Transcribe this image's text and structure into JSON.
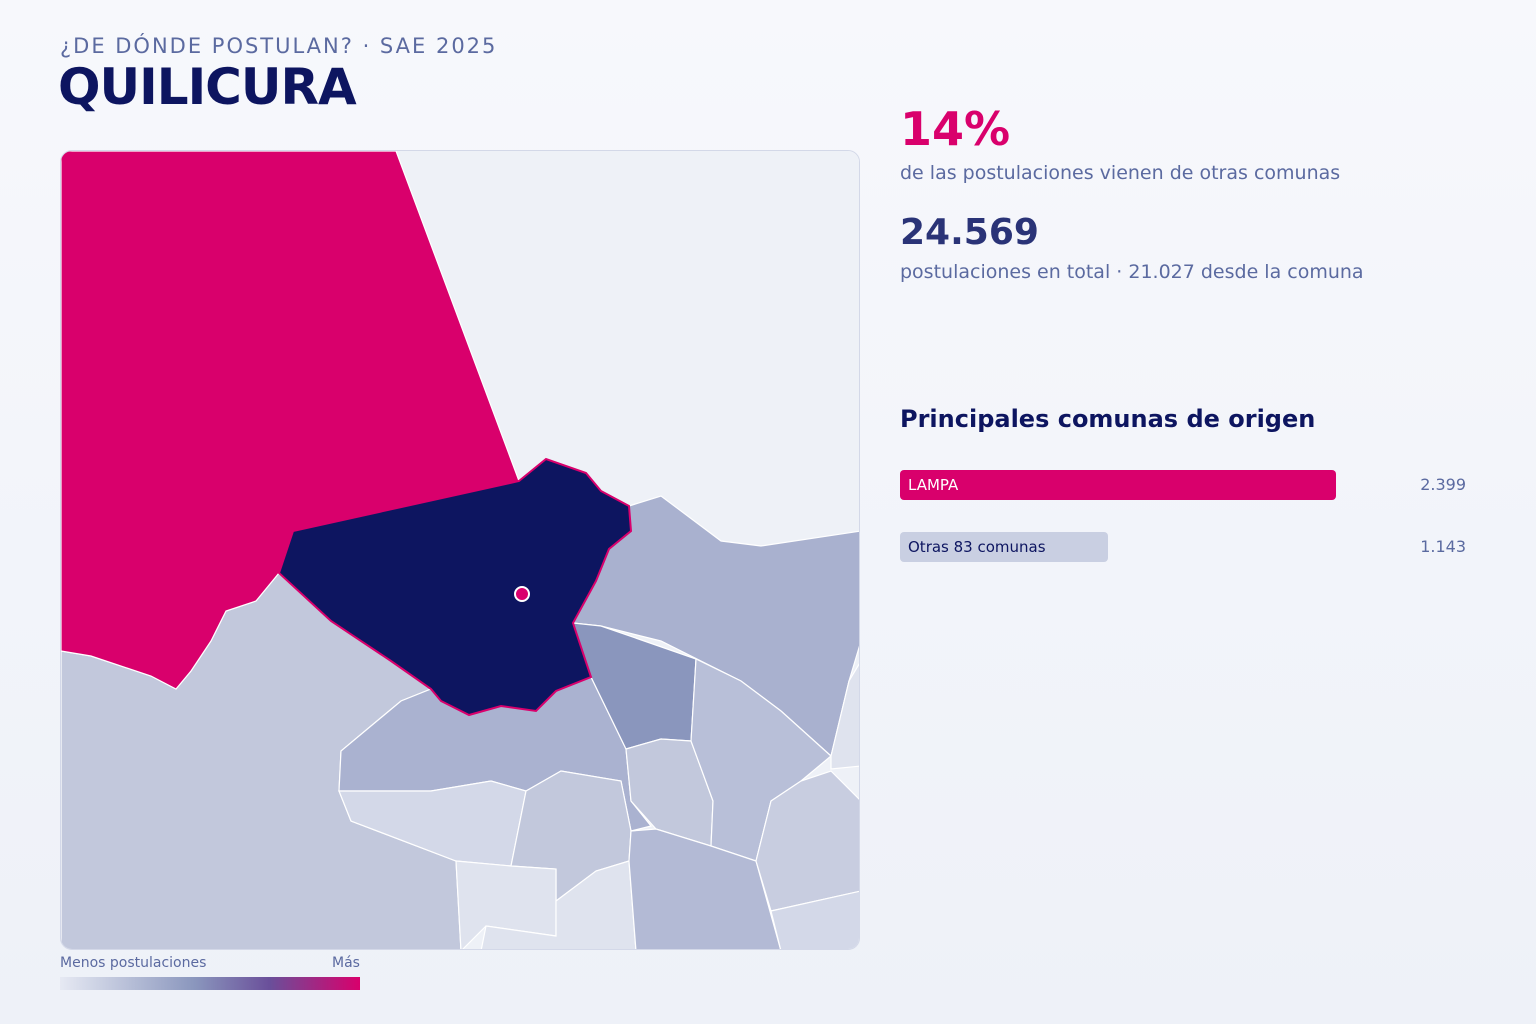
{
  "header": {
    "kicker": "¿DE DÓNDE POSTULAN? · SAE 2025",
    "title": "QUILICURA"
  },
  "stats": {
    "share": "14%",
    "share_caption": "de las postulaciones vienen de otras comunas",
    "total": "24.569",
    "total_caption": "postulaciones en total · 21.027 desde la comuna"
  },
  "ranking": {
    "title": "Principales comunas de origen",
    "items": [
      {
        "label": "LAMPA",
        "value": {
          "value": 2399,
          "label": "2.399"
        }
      },
      {
        "label": "Otras 83 comunas",
        "value": {
          "value": 1143,
          "label": "1.143"
        }
      }
    ]
  },
  "legend": {
    "low": "Menos postulaciones",
    "high": "Más"
  }
}
